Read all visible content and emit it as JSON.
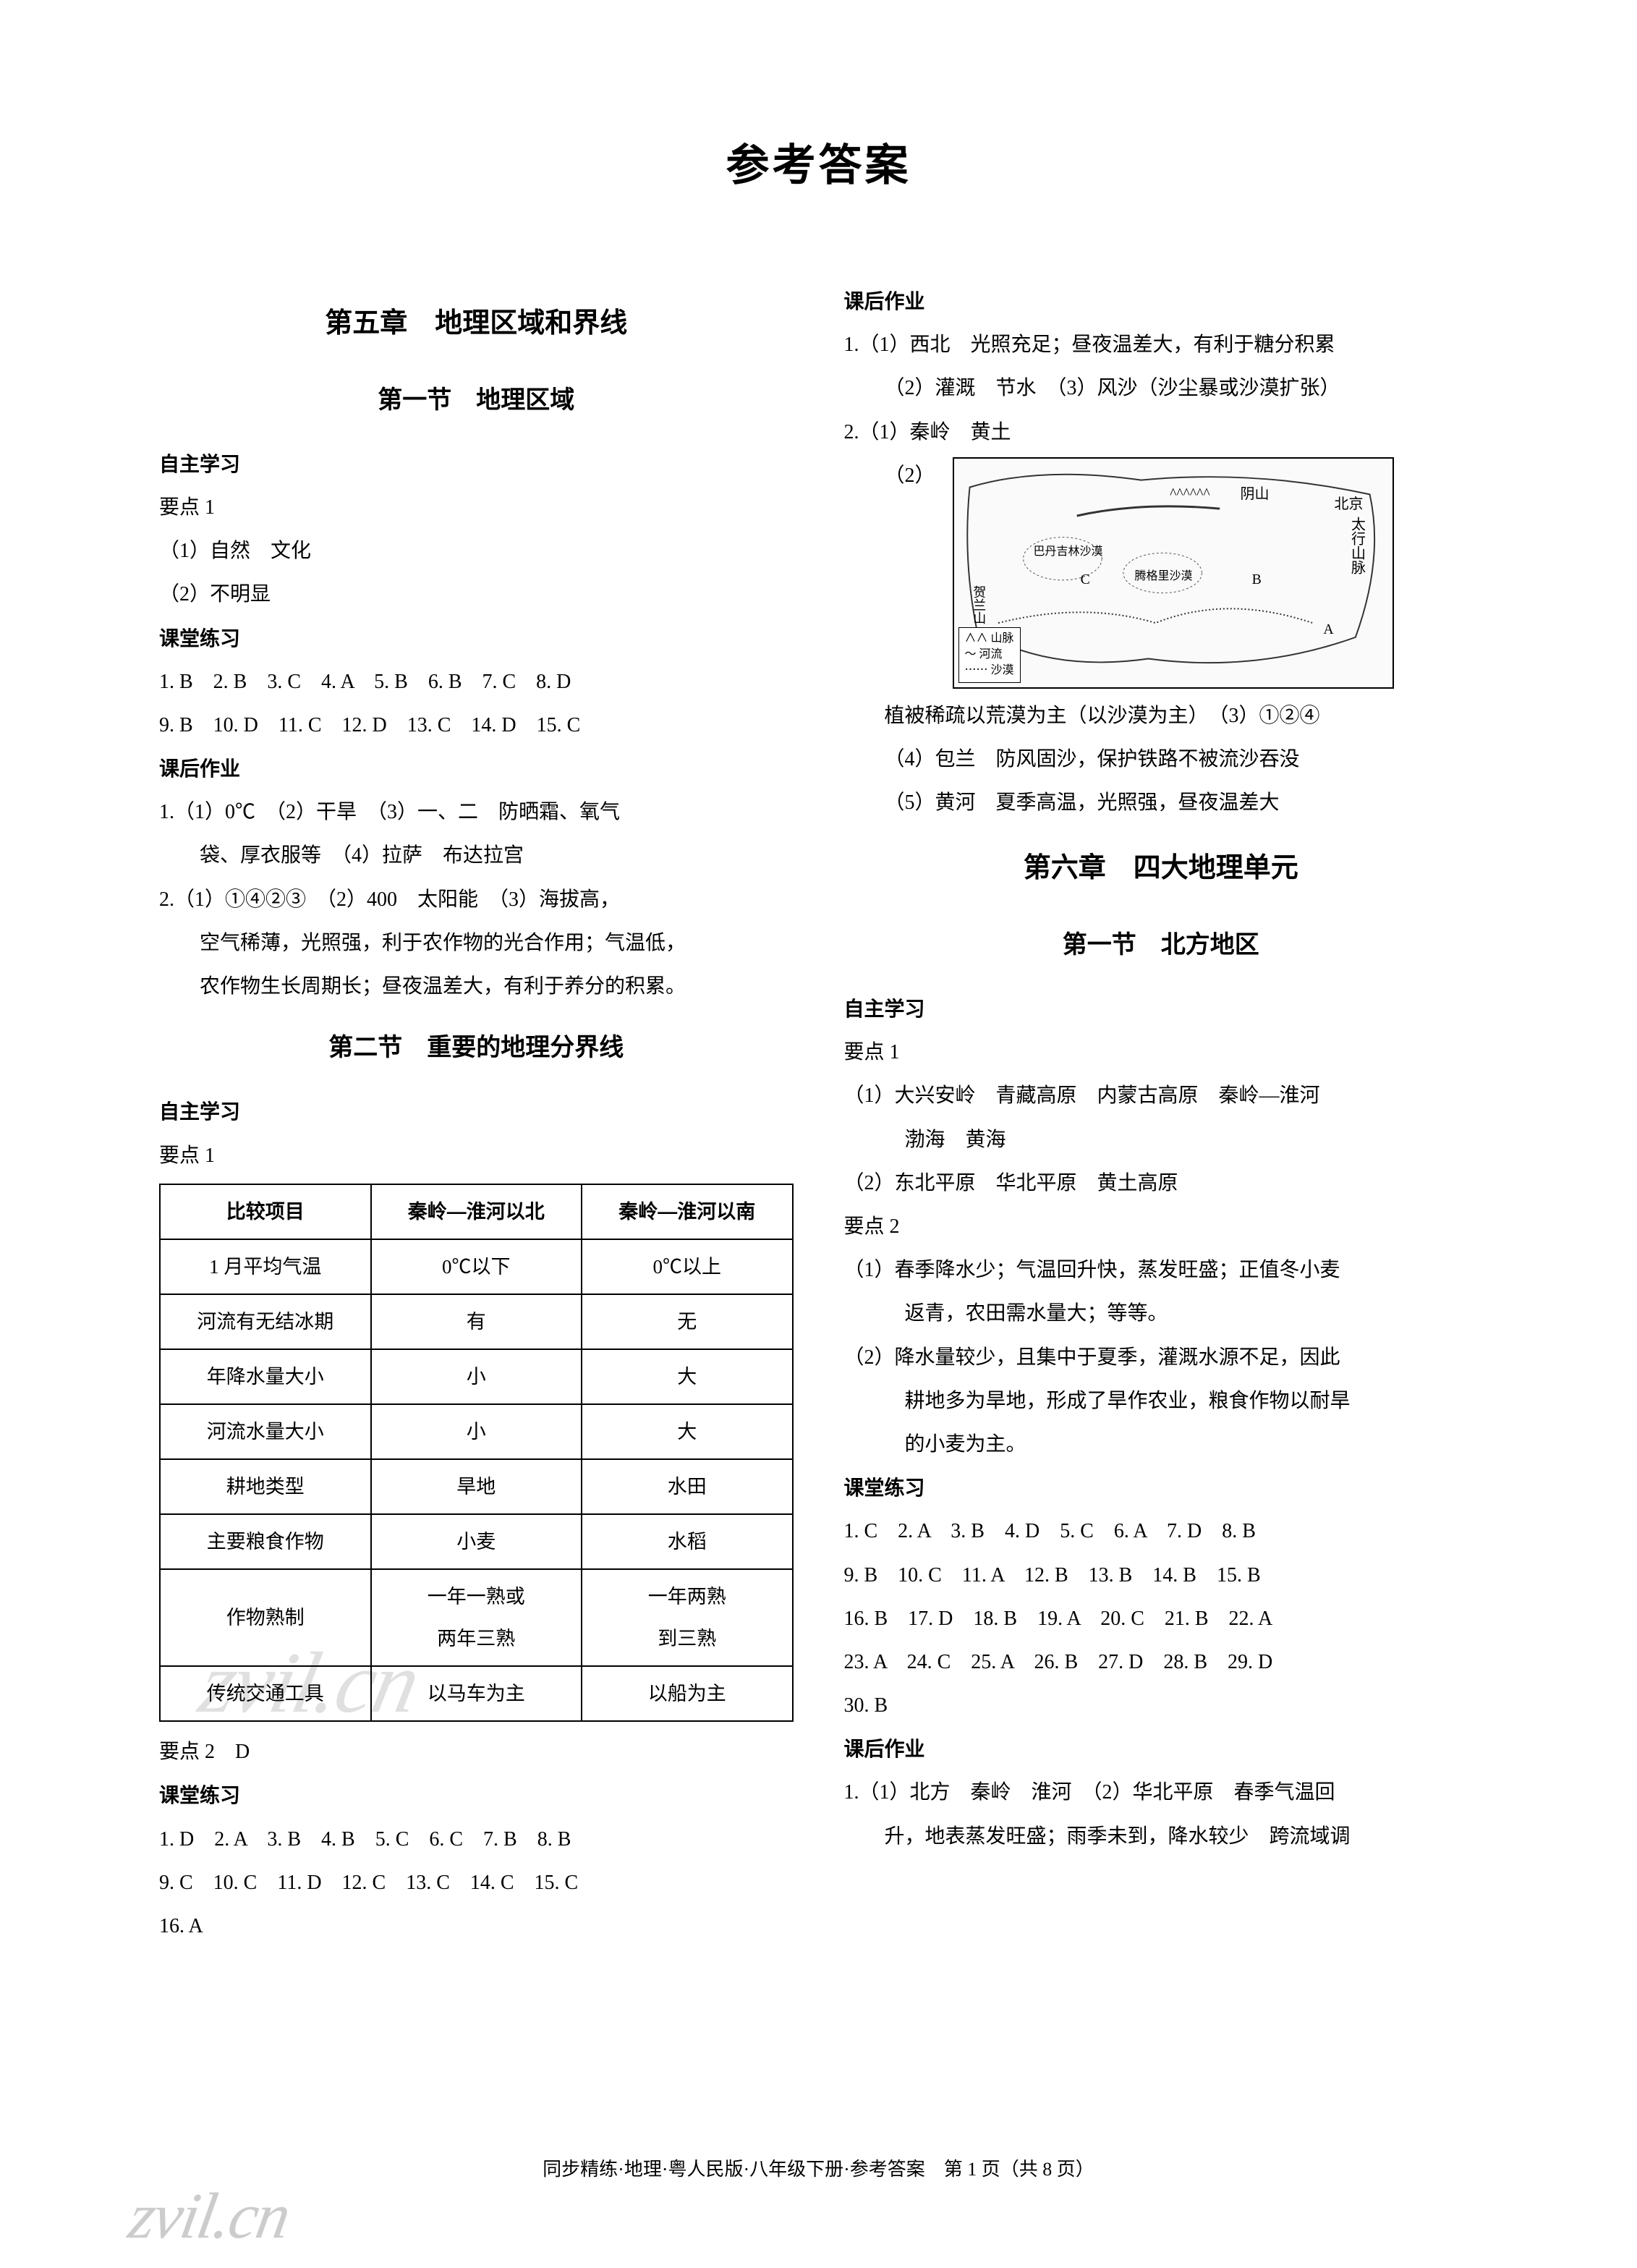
{
  "page": {
    "title": "参考答案",
    "footer": "同步精练·地理·粤人民版·八年级下册·参考答案　第 1 页（共 8 页）",
    "watermark": "zvil.cn"
  },
  "left": {
    "chapter_title": "第五章　地理区域和界线",
    "section1": {
      "title": "第一节　地理区域",
      "zizhu": "自主学习",
      "yaodian1": "要点 1",
      "p1": "（1）自然　文化",
      "p2": "（2）不明显",
      "ketang": "课堂练习",
      "kt_line1": "1. B　2. B　3. C　4. A　5. B　6. B　7. C　8. D",
      "kt_line2": "9. B　10. D　11. C　12. D　13. C　14. D　15. C",
      "kehou": "课后作业",
      "kh_line1": "1.（1）0℃　（2）干旱　（3）一、二　防晒霜、氧气",
      "kh_line1b": "袋、厚衣服等　（4）拉萨　布达拉宫",
      "kh_line2": "2.（1）①④②③　（2）400　太阳能　（3）海拔高，",
      "kh_line2b": "空气稀薄，光照强，利于农作物的光合作用；气温低，",
      "kh_line2c": "农作物生长周期长；昼夜温差大，有利于养分的积累。"
    },
    "section2": {
      "title": "第二节　重要的地理分界线",
      "zizhu": "自主学习",
      "yaodian1": "要点 1",
      "table": {
        "headers": [
          "比较项目",
          "秦岭—淮河以北",
          "秦岭—淮河以南"
        ],
        "rows": [
          [
            "1 月平均气温",
            "0℃以下",
            "0℃以上"
          ],
          [
            "河流有无结冰期",
            "有",
            "无"
          ],
          [
            "年降水量大小",
            "小",
            "大"
          ],
          [
            "河流水量大小",
            "小",
            "大"
          ],
          [
            "耕地类型",
            "旱地",
            "水田"
          ],
          [
            "主要粮食作物",
            "小麦",
            "水稻"
          ],
          [
            "作物熟制",
            "一年一熟或\n两年三熟",
            "一年两熟\n到三熟"
          ],
          [
            "传统交通工具",
            "以马车为主",
            "以船为主"
          ]
        ]
      },
      "yaodian2": "要点 2　D",
      "ketang": "课堂练习",
      "kt_line1": "1. D　2. A　3. B　4. B　5. C　6. C　7. B　8. B",
      "kt_line2": "9. C　10. C　11. D　12. C　13. C　14. C　15. C",
      "kt_line3": "16. A"
    }
  },
  "right": {
    "kehou_top": {
      "title": "课后作业",
      "l1": "1.（1）西北　光照充足；昼夜温差大，有利于糖分积累",
      "l2": "（2）灌溉　节水　（3）风沙（沙尘暴或沙漠扩张）",
      "l3": "2.（1）秦岭　黄土",
      "l4_label": "（2）",
      "map": {
        "labels": {
          "yinshan": "阴山",
          "beijing": "北京",
          "taihang": "太行山脉",
          "helan": "贺兰山",
          "badanjilin": "巴丹吉林沙漠",
          "tenggeli": "腾格里沙漠",
          "a": "A",
          "b": "B",
          "c": "C"
        },
        "legend": {
          "mountain": "山脉",
          "river": "河流",
          "desert": "沙漠"
        }
      },
      "l5": "植被稀疏以荒漠为主（以沙漠为主）　（3）①②④",
      "l6": "（4）包兰　防风固沙，保护铁路不被流沙吞没",
      "l7": "（5）黄河　夏季高温，光照强，昼夜温差大"
    },
    "chapter6": {
      "title": "第六章　四大地理单元",
      "section1": {
        "title": "第一节　北方地区",
        "zizhu": "自主学习",
        "yaodian1": "要点 1",
        "p1": "（1）大兴安岭　青藏高原　内蒙古高原　秦岭—淮河",
        "p1b": "渤海　黄海",
        "p2": "（2）东北平原　华北平原　黄土高原",
        "yaodian2": "要点 2",
        "p3": "（1）春季降水少；气温回升快，蒸发旺盛；正值冬小麦",
        "p3b": "返青，农田需水量大；等等。",
        "p4": "（2）降水量较少，且集中于夏季，灌溉水源不足，因此",
        "p4b": "耕地多为旱地，形成了旱作农业，粮食作物以耐旱",
        "p4c": "的小麦为主。",
        "ketang": "课堂练习",
        "kt_l1": "1. C　2. A　3. B　4. D　5. C　6. A　7. D　8. B",
        "kt_l2": "9. B　10. C　11. A　12. B　13. B　14. B　15. B",
        "kt_l3": "16. B　17. D　18. B　19. A　20. C　21. B　22. A",
        "kt_l4": "23. A　24. C　25. A　26. B　27. D　28. B　29. D",
        "kt_l5": "30. B",
        "kehou": "课后作业",
        "kh_l1": "1.（1）北方　秦岭　淮河　（2）华北平原　春季气温回",
        "kh_l2": "升，地表蒸发旺盛；雨季未到，降水较少　跨流域调"
      }
    }
  }
}
